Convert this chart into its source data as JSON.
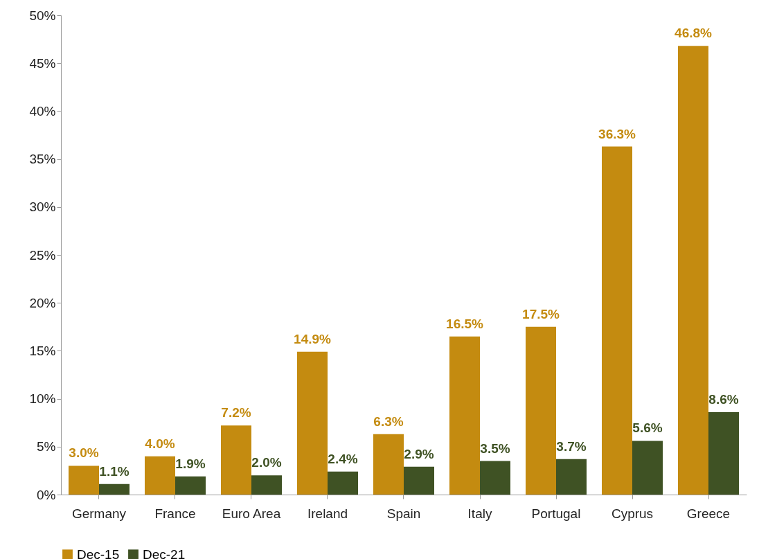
{
  "chart_data": {
    "type": "bar",
    "categories": [
      "Germany",
      "France",
      "Euro Area",
      "Ireland",
      "Spain",
      "Italy",
      "Portugal",
      "Cyprus",
      "Greece"
    ],
    "series": [
      {
        "name": "Dec-15",
        "color": "#c48b10",
        "values": [
          3.0,
          4.0,
          7.2,
          14.9,
          6.3,
          16.5,
          17.5,
          36.3,
          46.8
        ],
        "value_labels": [
          "3.0%",
          "4.0%",
          "7.2%",
          "14.9%",
          "6.3%",
          "16.5%",
          "17.5%",
          "36.3%",
          "46.8%"
        ]
      },
      {
        "name": "Dec-21",
        "color": "#3f5224",
        "values": [
          1.1,
          1.9,
          2.0,
          2.4,
          2.9,
          3.5,
          3.7,
          5.6,
          8.6
        ],
        "value_labels": [
          "1.1%",
          "1.9%",
          "2.0%",
          "2.4%",
          "2.9%",
          "3.5%",
          "3.7%",
          "5.6%",
          "8.6%"
        ]
      }
    ],
    "ylim": [
      0,
      50
    ],
    "yticks": [
      {
        "value": 0,
        "label": "0%"
      },
      {
        "value": 5,
        "label": "5%"
      },
      {
        "value": 10,
        "label": "10%"
      },
      {
        "value": 15,
        "label": "15%"
      },
      {
        "value": 20,
        "label": "20%"
      },
      {
        "value": 25,
        "label": "25%"
      },
      {
        "value": 30,
        "label": "30%"
      },
      {
        "value": 35,
        "label": "35%"
      },
      {
        "value": 40,
        "label": "40%"
      },
      {
        "value": 45,
        "label": "45%"
      },
      {
        "value": 50,
        "label": "50%"
      }
    ],
    "grid": false,
    "legend": "bottom"
  }
}
